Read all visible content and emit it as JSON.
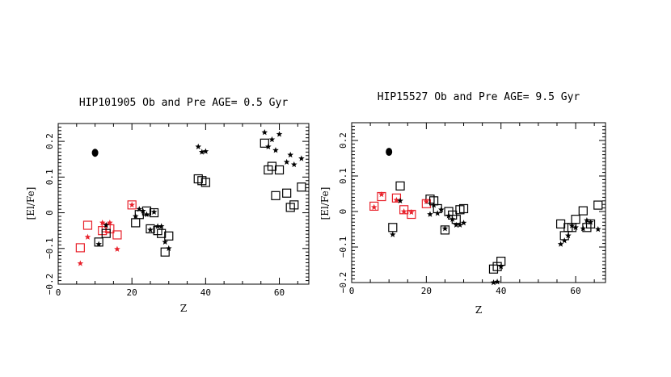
{
  "chart_data": [
    {
      "type": "scatter",
      "title": "HIP101905 Ob and Pre AGE= 0.5 Gyr",
      "xlabel": "Z",
      "ylabel": "[El/Fe]",
      "xlim": [
        0,
        68
      ],
      "ylim": [
        -0.2,
        0.25
      ],
      "xticks": [
        0,
        20,
        40,
        60
      ],
      "yticks": [
        -0.2,
        -0.1,
        0,
        0.1,
        0.2
      ],
      "xtick_labels": [
        "0",
        "20",
        "40",
        "60"
      ],
      "ytick_labels": [
        "−0.2",
        "−0.1",
        "0",
        "0.1",
        "0.2"
      ],
      "legend_dot": {
        "x": 10,
        "y": 0.168
      },
      "colors": {
        "red": "#e8212b",
        "black": "#000000"
      },
      "series": [
        {
          "name": "observed-red",
          "marker": "square",
          "color": "red",
          "points": [
            [
              6,
              -0.098
            ],
            [
              8,
              -0.035
            ],
            [
              12,
              -0.05
            ],
            [
              13,
              -0.042
            ],
            [
              14,
              -0.045
            ],
            [
              16,
              -0.062
            ],
            [
              20,
              0.022
            ]
          ]
        },
        {
          "name": "observed-black",
          "marker": "square",
          "color": "black",
          "points": [
            [
              11,
              -0.082
            ],
            [
              13,
              -0.058
            ],
            [
              21,
              -0.028
            ],
            [
              22,
              -0.005
            ],
            [
              24,
              0.005
            ],
            [
              25,
              -0.045
            ],
            [
              26,
              0.0
            ],
            [
              27,
              -0.05
            ],
            [
              28,
              -0.058
            ],
            [
              29,
              -0.11
            ],
            [
              30,
              -0.065
            ],
            [
              38,
              0.095
            ],
            [
              39,
              0.09
            ],
            [
              40,
              0.085
            ],
            [
              56,
              0.195
            ],
            [
              57,
              0.12
            ],
            [
              58,
              0.13
            ],
            [
              59,
              0.048
            ],
            [
              60,
              0.12
            ],
            [
              62,
              0.055
            ],
            [
              63,
              0.015
            ],
            [
              64,
              0.022
            ],
            [
              66,
              0.072
            ]
          ]
        },
        {
          "name": "predicted-red",
          "marker": "star",
          "color": "red",
          "points": [
            [
              6,
              -0.142
            ],
            [
              8,
              -0.068
            ],
            [
              12,
              -0.028
            ],
            [
              14,
              -0.028
            ],
            [
              16,
              -0.102
            ],
            [
              20,
              0.022
            ]
          ]
        },
        {
          "name": "predicted-black",
          "marker": "star",
          "color": "black",
          "points": [
            [
              11,
              -0.088
            ],
            [
              13,
              -0.035
            ],
            [
              21,
              -0.01
            ],
            [
              22,
              0.01
            ],
            [
              23,
              0.005
            ],
            [
              24,
              -0.005
            ],
            [
              25,
              -0.048
            ],
            [
              26,
              0.002
            ],
            [
              27,
              -0.038
            ],
            [
              28,
              -0.038
            ],
            [
              29,
              -0.082
            ],
            [
              30,
              -0.1
            ],
            [
              38,
              0.185
            ],
            [
              39,
              0.17
            ],
            [
              40,
              0.172
            ],
            [
              56,
              0.225
            ],
            [
              57,
              0.185
            ],
            [
              58,
              0.205
            ],
            [
              59,
              0.175
            ],
            [
              60,
              0.22
            ],
            [
              62,
              0.142
            ],
            [
              63,
              0.162
            ],
            [
              64,
              0.135
            ],
            [
              66,
              0.152
            ]
          ]
        }
      ]
    },
    {
      "type": "scatter",
      "title": "HIP15527  Ob and Pre AGE= 9.5 Gyr",
      "xlabel": "Z",
      "ylabel": "[El/Fe]",
      "xlim": [
        0,
        68
      ],
      "ylim": [
        -0.2,
        0.25
      ],
      "xticks": [
        0,
        20,
        40,
        60
      ],
      "yticks": [
        -0.2,
        -0.1,
        0,
        0.1,
        0.2
      ],
      "xtick_labels": [
        "0",
        "20",
        "40",
        "60"
      ],
      "ytick_labels": [
        "−0.2",
        "−0.1",
        "0",
        "0.1",
        "0.2"
      ],
      "legend_dot": {
        "x": 10,
        "y": 0.168
      },
      "colors": {
        "red": "#e8212b",
        "black": "#000000"
      },
      "series": [
        {
          "name": "observed-red",
          "marker": "square",
          "color": "red",
          "points": [
            [
              6,
              0.015
            ],
            [
              8,
              0.042
            ],
            [
              12,
              0.038
            ],
            [
              14,
              0.005
            ],
            [
              16,
              -0.008
            ],
            [
              20,
              0.022
            ]
          ]
        },
        {
          "name": "observed-black",
          "marker": "square",
          "color": "black",
          "points": [
            [
              11,
              -0.045
            ],
            [
              13,
              0.072
            ],
            [
              21,
              0.035
            ],
            [
              22,
              0.03
            ],
            [
              23,
              0.008
            ],
            [
              25,
              -0.052
            ],
            [
              26,
              0.0
            ],
            [
              27,
              -0.01
            ],
            [
              28,
              -0.022
            ],
            [
              29,
              0.005
            ],
            [
              30,
              0.008
            ],
            [
              38,
              -0.162
            ],
            [
              39,
              -0.155
            ],
            [
              40,
              -0.14
            ],
            [
              56,
              -0.035
            ],
            [
              57,
              -0.068
            ],
            [
              58,
              -0.045
            ],
            [
              59,
              -0.045
            ],
            [
              60,
              -0.022
            ],
            [
              62,
              0.002
            ],
            [
              63,
              -0.045
            ],
            [
              64,
              -0.035
            ],
            [
              66,
              0.018
            ]
          ]
        },
        {
          "name": "predicted-red",
          "marker": "star",
          "color": "red",
          "points": [
            [
              6,
              0.012
            ],
            [
              8,
              0.048
            ],
            [
              12,
              0.032
            ],
            [
              14,
              0.0
            ],
            [
              16,
              -0.002
            ],
            [
              20,
              0.028
            ]
          ]
        },
        {
          "name": "predicted-black",
          "marker": "star",
          "color": "black",
          "points": [
            [
              11,
              -0.065
            ],
            [
              13,
              0.03
            ],
            [
              21,
              -0.008
            ],
            [
              22,
              0.018
            ],
            [
              23,
              -0.005
            ],
            [
              24,
              0.005
            ],
            [
              25,
              -0.048
            ],
            [
              26,
              -0.012
            ],
            [
              27,
              -0.022
            ],
            [
              28,
              -0.038
            ],
            [
              29,
              -0.038
            ],
            [
              30,
              -0.032
            ],
            [
              38,
              -0.2
            ],
            [
              39,
              -0.198
            ],
            [
              40,
              -0.155
            ],
            [
              56,
              -0.092
            ],
            [
              57,
              -0.082
            ],
            [
              58,
              -0.068
            ],
            [
              59,
              -0.04
            ],
            [
              60,
              -0.045
            ],
            [
              62,
              -0.048
            ],
            [
              63,
              -0.025
            ],
            [
              64,
              -0.03
            ],
            [
              66,
              -0.05
            ]
          ]
        }
      ]
    }
  ]
}
